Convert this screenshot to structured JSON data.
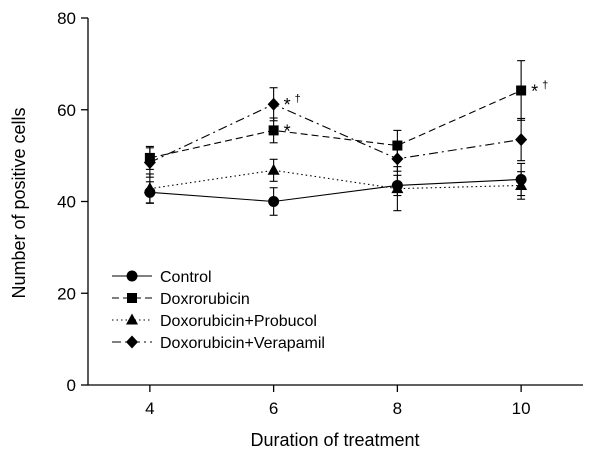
{
  "chart_data": {
    "type": "line",
    "xlabel": "Duration of treatment",
    "ylabel": "Number of positive cells",
    "x": [
      4,
      6,
      8,
      10
    ],
    "xlim": [
      3,
      11
    ],
    "ylim": [
      0,
      80
    ],
    "x_ticks": [
      "4",
      "6",
      "8",
      "10"
    ],
    "y_ticks": [
      "0",
      "20",
      "40",
      "60",
      "80"
    ],
    "legend_position": "bottom-left",
    "series": [
      {
        "name": "Control",
        "marker": "circle",
        "dash": "solid",
        "values": [
          42,
          40,
          43.5,
          44.8
        ],
        "err": [
          2.3,
          3,
          2.2,
          3.5
        ]
      },
      {
        "name": "Doxrorubicin",
        "marker": "square",
        "dash": "dashed",
        "values": [
          49.5,
          55.5,
          52.2,
          64.2
        ],
        "err": [
          2.5,
          2.7,
          3.3,
          6.5
        ]
      },
      {
        "name": "Doxorubicin+Probucol",
        "marker": "triangle",
        "dash": "dotted",
        "values": [
          42.8,
          46.8,
          42.8,
          43.5
        ],
        "err": [
          3.2,
          2.4,
          4.8,
          3
        ]
      },
      {
        "name": "Doxorubicin+Verapamil",
        "marker": "diamond",
        "dash": "dashdot",
        "values": [
          48.5,
          61.2,
          49.3,
          53.5
        ],
        "err": [
          3.2,
          3.6,
          2.7,
          4.6
        ]
      }
    ],
    "annotations": [
      {
        "series": 3,
        "x": 6,
        "text": "*",
        "sup": "†"
      },
      {
        "series": 1,
        "x": 6,
        "text": "*",
        "sup": ""
      },
      {
        "series": 1,
        "x": 10,
        "text": "*",
        "sup": "†"
      }
    ]
  }
}
